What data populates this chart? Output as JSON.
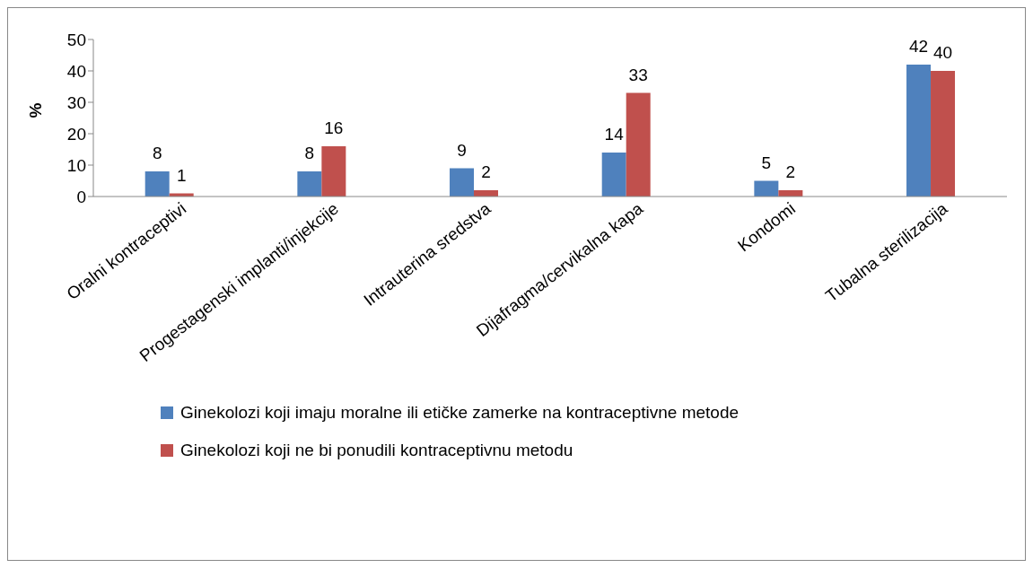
{
  "chart_data": {
    "type": "bar",
    "ylabel": "%",
    "categories": [
      "Oralni kontraceptivi",
      "Progestagenski implanti/injekcije",
      "Intrauterina sredstva",
      "Dijafragma/cervikalna kapa",
      "Kondomi",
      "Tubalna sterilizacija"
    ],
    "series": [
      {
        "name": "Ginekolozi koji imaju moralne ili etičke zamerke na kontraceptivne metode",
        "color": "#4f81bd",
        "values": [
          8,
          8,
          9,
          14,
          5,
          42
        ]
      },
      {
        "name": "Ginekolozi koji ne bi ponudili kontraceptivnu metodu",
        "color": "#c0504d",
        "values": [
          1,
          16,
          2,
          33,
          2,
          40
        ]
      }
    ],
    "ylim": [
      0,
      50
    ],
    "yticks": [
      0,
      10,
      20,
      30,
      40,
      50
    ],
    "grid": false,
    "legend": "bottom",
    "data_labels": true
  }
}
